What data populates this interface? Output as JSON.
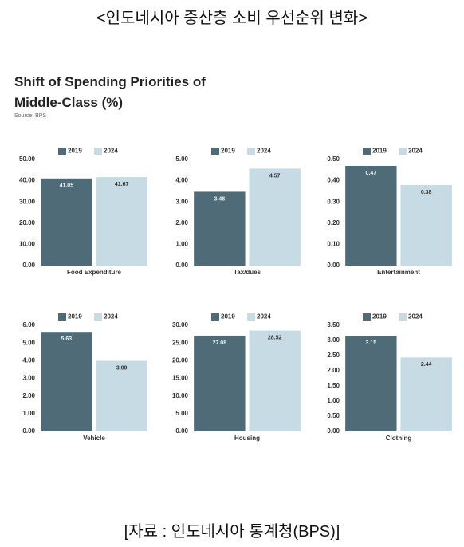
{
  "page_title": "<인도네시아 중산층 소비 우선순위 변화>",
  "inner_title": "Shift of Spending Priorities of Middle-Class (%)",
  "source": "Source: BPS",
  "caption": "[자료 : 인도네시아 통계청(BPS)]",
  "chart_data": [
    {
      "type": "bar",
      "categories": [
        "Food Expenditure"
      ],
      "grid": false,
      "series": [
        {
          "name": "2019",
          "color": "#4f6b78",
          "values": [
            41.05
          ]
        },
        {
          "name": "2024",
          "color": "#c6dbe3",
          "values": [
            41.67
          ]
        }
      ],
      "ylim": [
        0,
        50
      ],
      "yticks": [
        {
          "value": 0,
          "label": "0.00"
        },
        {
          "value": 10,
          "label": "10.00"
        },
        {
          "value": 20,
          "label": "20.00"
        },
        {
          "value": 30,
          "label": "30.00"
        },
        {
          "value": 40,
          "label": "40.00"
        },
        {
          "value": 50,
          "label": "50.00"
        }
      ]
    },
    {
      "type": "bar",
      "categories": [
        "Tax/dues"
      ],
      "grid": false,
      "series": [
        {
          "name": "2019",
          "color": "#4f6b78",
          "values": [
            3.48
          ]
        },
        {
          "name": "2024",
          "color": "#c6dbe3",
          "values": [
            4.57
          ]
        }
      ],
      "ylim": [
        0,
        5
      ],
      "yticks": [
        {
          "value": 0,
          "label": "0.00"
        },
        {
          "value": 1,
          "label": "1.00"
        },
        {
          "value": 2,
          "label": "2.00"
        },
        {
          "value": 3,
          "label": "3.00"
        },
        {
          "value": 4,
          "label": "4.00"
        },
        {
          "value": 5,
          "label": "5.00"
        }
      ]
    },
    {
      "type": "bar",
      "categories": [
        "Entertainment"
      ],
      "grid": false,
      "series": [
        {
          "name": "2019",
          "color": "#4f6b78",
          "values": [
            0.47
          ]
        },
        {
          "name": "2024",
          "color": "#c6dbe3",
          "values": [
            0.38
          ]
        }
      ],
      "ylim": [
        0,
        0.5
      ],
      "yticks": [
        {
          "value": 0,
          "label": "0.00"
        },
        {
          "value": 0.1,
          "label": "0.10"
        },
        {
          "value": 0.2,
          "label": "0.20"
        },
        {
          "value": 0.3,
          "label": "0.30"
        },
        {
          "value": 0.4,
          "label": "0.40"
        },
        {
          "value": 0.5,
          "label": "0.50"
        }
      ]
    },
    {
      "type": "bar",
      "categories": [
        "Vehicle"
      ],
      "grid": false,
      "series": [
        {
          "name": "2019",
          "color": "#4f6b78",
          "values": [
            5.63
          ]
        },
        {
          "name": "2024",
          "color": "#c6dbe3",
          "values": [
            3.99
          ]
        }
      ],
      "ylim": [
        0,
        6
      ],
      "yticks": [
        {
          "value": 0,
          "label": "0.00"
        },
        {
          "value": 1,
          "label": "1.00"
        },
        {
          "value": 2,
          "label": "2.00"
        },
        {
          "value": 3,
          "label": "3.00"
        },
        {
          "value": 4,
          "label": "4.00"
        },
        {
          "value": 5,
          "label": "5.00"
        },
        {
          "value": 6,
          "label": "6.00"
        }
      ]
    },
    {
      "type": "bar",
      "categories": [
        "Housing"
      ],
      "grid": false,
      "series": [
        {
          "name": "2019",
          "color": "#4f6b78",
          "values": [
            27.08
          ]
        },
        {
          "name": "2024",
          "color": "#c6dbe3",
          "values": [
            28.52
          ]
        }
      ],
      "ylim": [
        0,
        30
      ],
      "yticks": [
        {
          "value": 0,
          "label": "0.00"
        },
        {
          "value": 5,
          "label": "5.00"
        },
        {
          "value": 10,
          "label": "10.00"
        },
        {
          "value": 15,
          "label": "15.00"
        },
        {
          "value": 20,
          "label": "20.00"
        },
        {
          "value": 25,
          "label": "25.00"
        },
        {
          "value": 30,
          "label": "30.00"
        }
      ]
    },
    {
      "type": "bar",
      "categories": [
        "Clothing"
      ],
      "grid": false,
      "series": [
        {
          "name": "2019",
          "color": "#4f6b78",
          "values": [
            3.15
          ]
        },
        {
          "name": "2024",
          "color": "#c6dbe3",
          "values": [
            2.44
          ]
        }
      ],
      "ylim": [
        0,
        3.5
      ],
      "yticks": [
        {
          "value": 0,
          "label": "0.00"
        },
        {
          "value": 0.5,
          "label": "0.50"
        },
        {
          "value": 1,
          "label": "1.00"
        },
        {
          "value": 1.5,
          "label": "1.50"
        },
        {
          "value": 2,
          "label": "2.00"
        },
        {
          "value": 2.5,
          "label": "2.50"
        },
        {
          "value": 3,
          "label": "3.00"
        },
        {
          "value": 3.5,
          "label": "3.50"
        }
      ]
    }
  ]
}
